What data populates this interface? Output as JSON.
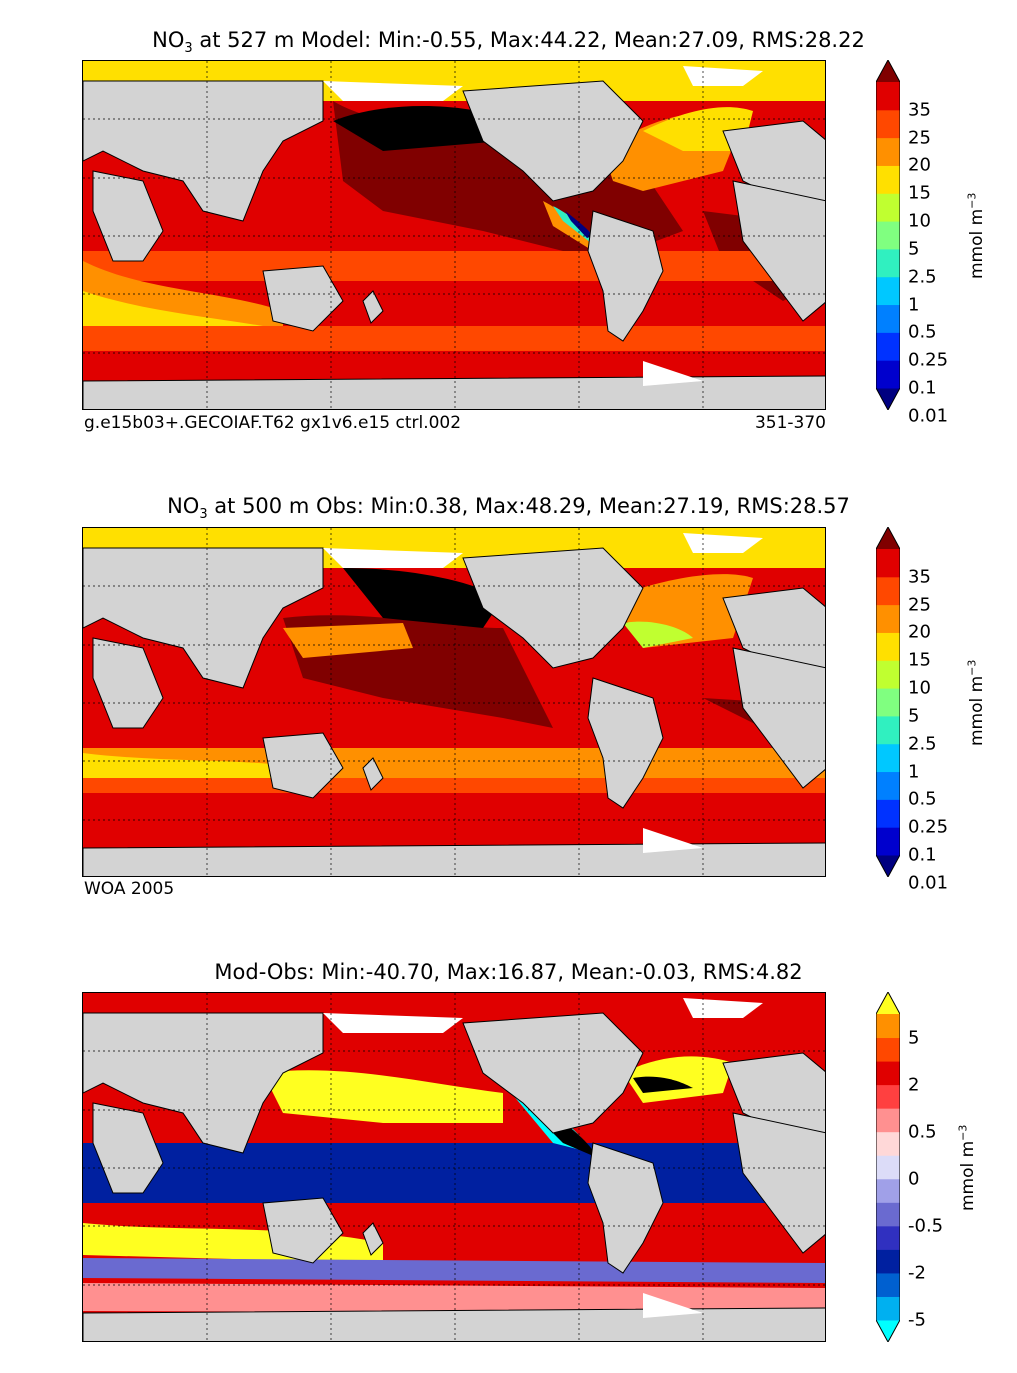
{
  "panels": [
    {
      "title_main": "NO",
      "title_sub": "3",
      "title_rest": " at 527 m Model: Min:-0.55, Max:44.22, Mean:27.09, RMS:28.22",
      "caption_left": "g.e15b03+.GECOIAF.T62 gx1v6.e15 ctrl.002",
      "caption_right": "351-370",
      "colorbar": {
        "ticks": [
          "35",
          "25",
          "20",
          "15",
          "10",
          "5",
          "2.5",
          "1",
          "0.5",
          "0.25",
          "0.1",
          "0.01"
        ],
        "colors": [
          "#000080",
          "#0000cd",
          "#0032ff",
          "#0080ff",
          "#00c8ff",
          "#30f0c0",
          "#80ff80",
          "#c0ff30",
          "#ffe000",
          "#ff9000",
          "#ff4800",
          "#e00000",
          "#800000"
        ],
        "unit": "mmol m",
        "unit_exp": "−3"
      }
    },
    {
      "title_main": "NO",
      "title_sub": "3",
      "title_rest": " at 500 m Obs: Min:0.38, Max:48.29, Mean:27.19, RMS:28.57",
      "caption_left": "WOA 2005",
      "caption_right": "",
      "colorbar": {
        "ticks": [
          "35",
          "25",
          "20",
          "15",
          "10",
          "5",
          "2.5",
          "1",
          "0.5",
          "0.25",
          "0.1",
          "0.01"
        ],
        "colors": [
          "#000080",
          "#0000cd",
          "#0032ff",
          "#0080ff",
          "#00c8ff",
          "#30f0c0",
          "#80ff80",
          "#c0ff30",
          "#ffe000",
          "#ff9000",
          "#ff4800",
          "#e00000",
          "#800000"
        ],
        "unit": "mmol m",
        "unit_exp": "−3"
      }
    },
    {
      "title_main": "Mod-Obs: Min:-40.70, Max:16.87, Mean:-0.03, RMS:4.82",
      "title_sub": "",
      "title_rest": "",
      "caption_left": "",
      "caption_right": "",
      "colorbar": {
        "ticks": [
          "5",
          "2",
          "0.5",
          "0",
          "-0.5",
          "-2",
          "-5"
        ],
        "colors": [
          "#00ffff",
          "#00b0f0",
          "#0060d0",
          "#0020a0",
          "#3030c0",
          "#6a6ad0",
          "#a0a0e8",
          "#dcdcf8",
          "#ffd8d8",
          "#ff9090",
          "#ff4040",
          "#e00000",
          "#ff4800",
          "#ff9000",
          "#ffff20"
        ],
        "unit": "mmol m",
        "unit_exp": "−3"
      }
    }
  ],
  "colors": {
    "land": "#d3d3d3",
    "ice": "#ffffff",
    "coast": "#000000"
  }
}
